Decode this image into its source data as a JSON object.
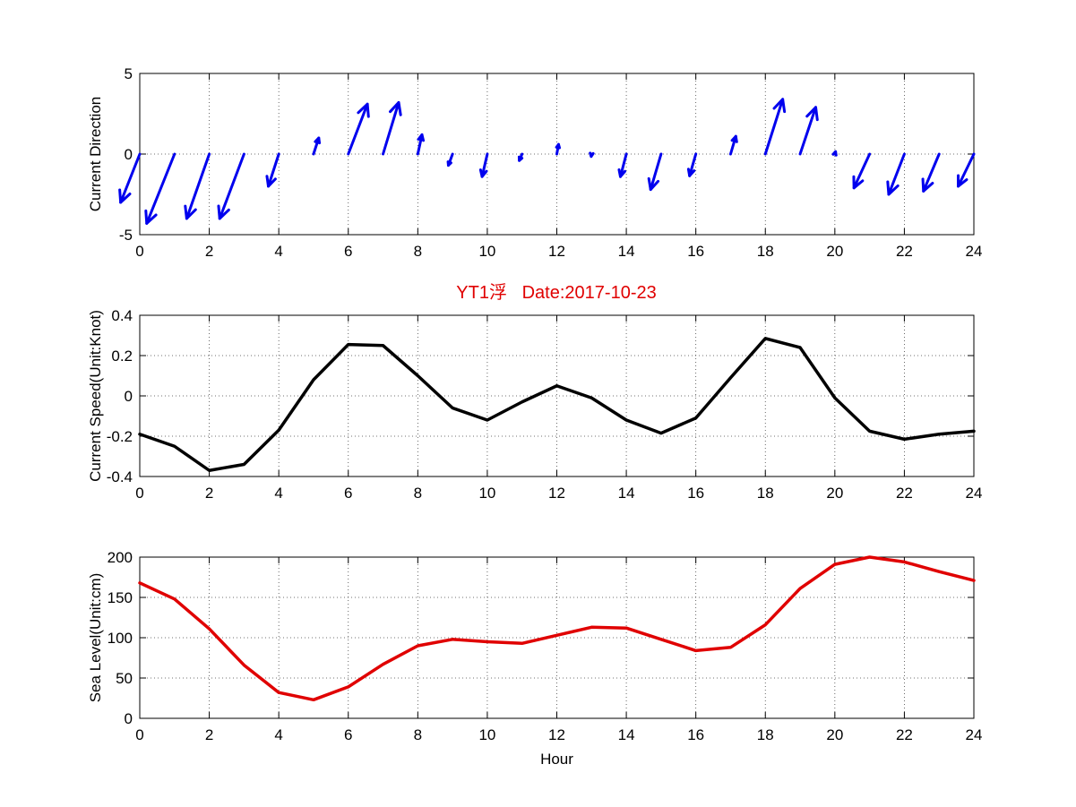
{
  "title": "YT1浮   Date:2017-10-23",
  "colors": {
    "title": "#e00000",
    "arrows": "#0000ee",
    "speed": "#000000",
    "sea_level": "#e00000"
  },
  "chart_data": [
    {
      "type": "quiver",
      "title": "",
      "xlabel": "",
      "ylabel": "Current Direction",
      "xlim": [
        0,
        24
      ],
      "ylim": [
        -5,
        5
      ],
      "xticks": [
        0,
        2,
        4,
        6,
        8,
        10,
        12,
        14,
        16,
        18,
        20,
        22,
        24
      ],
      "yticks": [
        -5,
        0,
        5
      ],
      "grid": true,
      "x": [
        0,
        1,
        2,
        3,
        4,
        5,
        6,
        7,
        8,
        9,
        10,
        11,
        12,
        13,
        14,
        15,
        16,
        17,
        18,
        19,
        20,
        21,
        22,
        23,
        24
      ],
      "u": [
        -0.55,
        -0.8,
        -0.65,
        -0.7,
        -0.3,
        0.15,
        0.55,
        0.45,
        0.12,
        -0.12,
        -0.15,
        -0.08,
        0.05,
        -0.01,
        -0.17,
        -0.3,
        -0.18,
        0.15,
        0.5,
        0.45,
        0.02,
        -0.45,
        -0.45,
        -0.45,
        -0.45
      ],
      "v": [
        -3.0,
        -4.3,
        -4.0,
        -4.0,
        -2.0,
        1.0,
        3.1,
        3.2,
        1.2,
        -0.7,
        -1.4,
        -0.4,
        0.6,
        -0.15,
        -1.4,
        -2.2,
        -1.35,
        1.1,
        3.4,
        2.9,
        0.15,
        -2.1,
        -2.5,
        -2.3,
        -2.0
      ]
    },
    {
      "type": "line",
      "title": "",
      "xlabel": "",
      "ylabel": "Current Speed(Unit:Knot)",
      "xlim": [
        0,
        24
      ],
      "ylim": [
        -0.4,
        0.4
      ],
      "xticks": [
        0,
        2,
        4,
        6,
        8,
        10,
        12,
        14,
        16,
        18,
        20,
        22,
        24
      ],
      "yticks": [
        -0.4,
        -0.2,
        0,
        0.2,
        0.4
      ],
      "grid": true,
      "x": [
        0,
        1,
        2,
        3,
        4,
        5,
        6,
        7,
        8,
        9,
        10,
        11,
        12,
        13,
        14,
        15,
        16,
        17,
        18,
        19,
        20,
        21,
        22,
        23,
        24
      ],
      "y": [
        -0.19,
        -0.25,
        -0.37,
        -0.34,
        -0.17,
        0.08,
        0.255,
        0.25,
        0.1,
        -0.06,
        -0.12,
        -0.03,
        0.05,
        -0.01,
        -0.12,
        -0.185,
        -0.11,
        0.09,
        0.285,
        0.24,
        -0.01,
        -0.175,
        -0.215,
        -0.19,
        -0.175
      ]
    },
    {
      "type": "line",
      "title": "",
      "xlabel": "Hour",
      "ylabel": "Sea Level(Unit:cm)",
      "xlim": [
        0,
        24
      ],
      "ylim": [
        0,
        200
      ],
      "xticks": [
        0,
        2,
        4,
        6,
        8,
        10,
        12,
        14,
        16,
        18,
        20,
        22,
        24
      ],
      "yticks": [
        0,
        50,
        100,
        150,
        200
      ],
      "grid": true,
      "x": [
        0,
        1,
        2,
        3,
        4,
        5,
        6,
        7,
        8,
        9,
        10,
        11,
        12,
        13,
        14,
        15,
        16,
        17,
        18,
        19,
        20,
        21,
        22,
        23,
        24
      ],
      "y": [
        168,
        148,
        111,
        66,
        32,
        23,
        39,
        67,
        90,
        98,
        95,
        93,
        103,
        113,
        112,
        98,
        84,
        88,
        116,
        161,
        191,
        200,
        194,
        182,
        171
      ]
    }
  ]
}
